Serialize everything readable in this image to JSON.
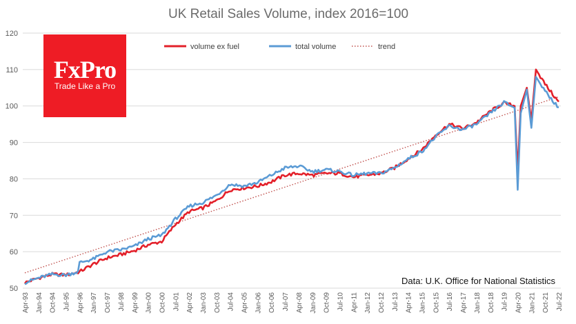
{
  "logo": {
    "name": "FxPro",
    "tagline": "Trade Like a Pro",
    "color": "#ee1c25"
  },
  "source_note": "Data: U.K. Office for National Statistics",
  "chart_data": {
    "type": "line",
    "title": "UK Retail Sales Volume, index 2016=100",
    "xlabel": "",
    "ylabel": "",
    "ylim": [
      50,
      120
    ],
    "yticks": [
      "50",
      "60",
      "70",
      "80",
      "90",
      "100",
      "110",
      "120"
    ],
    "grid": true,
    "legend_position": "top",
    "x_tick_labels": [
      "Apr-93",
      "Jan-94",
      "Oct-94",
      "Jul-95",
      "Apr-96",
      "Jan-97",
      "Oct-97",
      "Jul-98",
      "Apr-99",
      "Jan-00",
      "Oct-00",
      "Jul-01",
      "Apr-02",
      "Jan-03",
      "Oct-03",
      "Jul-04",
      "Apr-05",
      "Jan-06",
      "Oct-06",
      "Jul-07",
      "Apr-08",
      "Jan-09",
      "Oct-09",
      "Jul-10",
      "Apr-11",
      "Jan-12",
      "Oct-12",
      "Jul-13",
      "Apr-14",
      "Jan-15",
      "Oct-15",
      "Jul-16",
      "Apr-17",
      "Jan-18",
      "Oct-18",
      "Jul-19",
      "Apr-20",
      "Jan-21",
      "Oct-21",
      "Jul-22"
    ],
    "series": [
      {
        "name": "volume ex fuel",
        "color": "#e3202a",
        "style": "solid",
        "anchors": [
          [
            "1993-04",
            51.5
          ],
          [
            "1994-01",
            52.8
          ],
          [
            "1994-10",
            53.8
          ],
          [
            "1995-07",
            53.6
          ],
          [
            "1996-04",
            54.5
          ],
          [
            "1997-01",
            56.6
          ],
          [
            "1997-10",
            58.3
          ],
          [
            "1998-07",
            59.2
          ],
          [
            "1999-04",
            60.3
          ],
          [
            "2000-01",
            61.9
          ],
          [
            "2000-10",
            62.8
          ],
          [
            "2001-07",
            67.5
          ],
          [
            "2002-04",
            71.0
          ],
          [
            "2003-01",
            72.0
          ],
          [
            "2003-10",
            74.0
          ],
          [
            "2004-07",
            77.0
          ],
          [
            "2005-04",
            77.5
          ],
          [
            "2006-01",
            78.0
          ],
          [
            "2006-10",
            79.2
          ],
          [
            "2007-07",
            81.0
          ],
          [
            "2008-04",
            81.5
          ],
          [
            "2009-01",
            81.0
          ],
          [
            "2009-10",
            81.5
          ],
          [
            "2010-07",
            81.5
          ],
          [
            "2011-04",
            80.5
          ],
          [
            "2012-01",
            81.0
          ],
          [
            "2012-10",
            81.5
          ],
          [
            "2013-07",
            83.0
          ],
          [
            "2014-04",
            85.5
          ],
          [
            "2015-01",
            88.0
          ],
          [
            "2015-10",
            92.0
          ],
          [
            "2016-07",
            95.0
          ],
          [
            "2017-04",
            93.8
          ],
          [
            "2018-01",
            95.5
          ],
          [
            "2018-10",
            98.5
          ],
          [
            "2019-07",
            100.8
          ],
          [
            "2020-02",
            100.0
          ],
          [
            "2020-04",
            82.0
          ],
          [
            "2020-06",
            100.0
          ],
          [
            "2020-10",
            105.0
          ],
          [
            "2021-01",
            96.0
          ],
          [
            "2021-04",
            110.0
          ],
          [
            "2021-10",
            106.0
          ],
          [
            "2022-07",
            101.0
          ]
        ]
      },
      {
        "name": "total volume",
        "color": "#5b9bd5",
        "style": "solid",
        "anchors": [
          [
            "1993-04",
            51.5
          ],
          [
            "1994-01",
            52.8
          ],
          [
            "1994-10",
            53.8
          ],
          [
            "1995-07",
            53.6
          ],
          [
            "1996-03",
            54.5
          ],
          [
            "1996-04",
            57.0
          ],
          [
            "1997-01",
            58.0
          ],
          [
            "1997-10",
            60.0
          ],
          [
            "1998-07",
            60.5
          ],
          [
            "1999-04",
            61.5
          ],
          [
            "2000-01",
            63.5
          ],
          [
            "2000-10",
            64.5
          ],
          [
            "2001-07",
            69.0
          ],
          [
            "2002-04",
            72.5
          ],
          [
            "2003-01",
            73.5
          ],
          [
            "2003-10",
            75.5
          ],
          [
            "2004-07",
            78.5
          ],
          [
            "2005-04",
            78.0
          ],
          [
            "2006-01",
            79.0
          ],
          [
            "2006-10",
            81.0
          ],
          [
            "2007-07",
            83.0
          ],
          [
            "2008-04",
            83.5
          ],
          [
            "2009-01",
            82.0
          ],
          [
            "2009-10",
            82.5
          ],
          [
            "2010-07",
            82.0
          ],
          [
            "2011-04",
            81.0
          ],
          [
            "2012-01",
            81.5
          ],
          [
            "2012-10",
            81.5
          ],
          [
            "2013-07",
            83.0
          ],
          [
            "2014-04",
            85.5
          ],
          [
            "2015-01",
            87.5
          ],
          [
            "2015-10",
            91.5
          ],
          [
            "2016-07",
            94.5
          ],
          [
            "2017-04",
            93.5
          ],
          [
            "2018-01",
            95.0
          ],
          [
            "2018-10",
            98.0
          ],
          [
            "2019-07",
            101.0
          ],
          [
            "2020-02",
            99.5
          ],
          [
            "2020-04",
            77.0
          ],
          [
            "2020-06",
            98.0
          ],
          [
            "2020-10",
            104.5
          ],
          [
            "2021-01",
            94.0
          ],
          [
            "2021-04",
            108.0
          ],
          [
            "2021-10",
            104.0
          ],
          [
            "2022-07",
            99.5
          ]
        ]
      },
      {
        "name": "trend",
        "color": "#c0504d",
        "style": "dotted",
        "anchors": [
          [
            "1993-04",
            54.2
          ],
          [
            "2022-07",
            102.5
          ]
        ]
      }
    ]
  }
}
